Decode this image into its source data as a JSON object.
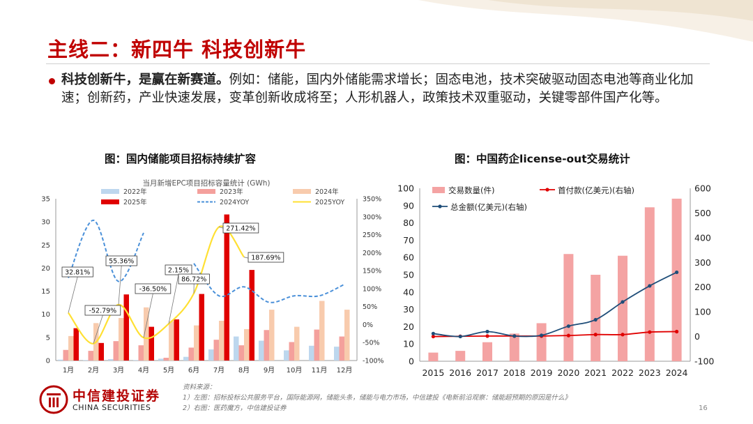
{
  "slide": {
    "title": "主线二：新四牛  科技创新牛",
    "bullet_lead": "科技创新牛，是赢在新赛道。",
    "bullet_text": "例如：储能，国内外储能需求增长；固态电池，技术突破驱动固态电池等商业化加速；创新药，产业快速发展，变革创新收成将至；人形机器人，政策技术双重驱动，关键零部件国产化等。",
    "page_number": "16"
  },
  "footer": {
    "logo_cn": "中信建投证券",
    "logo_en": "CHINA SECURITIES",
    "source_title": "资料来源：",
    "source_1": "1）左图：招标投标公共服务平台，国际能源网，储能头条，储能与电力市场，中信建投《电新前沿观察：储能超预期的原因是什么》",
    "source_2": "2）右图：医药魔方，中信建投证券"
  },
  "colors": {
    "brand_red": "#c00000",
    "bar_2022": "#bdd7ee",
    "bar_2023": "#f4a09c",
    "bar_2024": "#f8cbad",
    "bar_2025": "#e00000",
    "yoy_2024": "#4a90d9",
    "yoy_2025": "#ffe033",
    "deals_bar": "#f4a3a3",
    "upfront_line": "#e00000",
    "total_line": "#1f4e79"
  },
  "chart_data": [
    {
      "type": "bar",
      "title": "图：国内储能项目招标持续扩容",
      "subtitle": "当月新增EPC项目招标容量统计 (GWh)",
      "categories": [
        "1月",
        "2月",
        "3月",
        "4月",
        "5月",
        "6月",
        "7月",
        "8月",
        "9月",
        "10月",
        "11月",
        "12月"
      ],
      "ylim": [
        0,
        35
      ],
      "yticks": [
        0,
        5,
        10,
        15,
        20,
        25,
        30,
        35
      ],
      "y2lim": [
        -100,
        350
      ],
      "y2ticks": [
        "-100%",
        "-50%",
        "0%",
        "50%",
        "100%",
        "150%",
        "200%",
        "250%",
        "300%",
        "350%"
      ],
      "y2tick_values": [
        -100,
        -50,
        0,
        50,
        100,
        150,
        200,
        250,
        300,
        350
      ],
      "series": [
        {
          "name": "2022年",
          "values": [
            0.2,
            0.1,
            0.3,
            0.1,
            0.4,
            0.8,
            2.4,
            5.2,
            4.3,
            2.2,
            3.2,
            3.0
          ]
        },
        {
          "name": "2023年",
          "values": [
            2.3,
            2.1,
            4.2,
            3.3,
            0.6,
            2.8,
            4.5,
            3.3,
            6.6,
            4.0,
            6.7,
            5.2
          ]
        },
        {
          "name": "2024年",
          "values": [
            5.3,
            8.1,
            9.2,
            11.5,
            8.5,
            7.6,
            8.6,
            6.8,
            11.0,
            7.3,
            12.9,
            11.0
          ]
        },
        {
          "name": "2025年",
          "values": [
            7.0,
            3.8,
            14.3,
            7.3,
            8.9,
            14.4,
            31.6,
            19.6,
            null,
            null,
            null,
            null
          ]
        },
        {
          "name": "2024YOY",
          "type": "line",
          "style": "dashed",
          "values": [
            130,
            290,
            120,
            255,
            null,
            170,
            80,
            105,
            62,
            80,
            80,
            112
          ]
        },
        {
          "name": "2025YOY",
          "type": "line",
          "values": [
            32.81,
            -52.79,
            55.36,
            -36.5,
            2.15,
            86.72,
            271.42,
            187.69,
            null,
            null,
            null,
            null
          ]
        }
      ],
      "annotations": [
        "32.81%",
        "-52.79%",
        "55.36%",
        "-36.50%",
        "2.15%",
        "86.72%",
        "271.42%",
        "187.69%"
      ],
      "legend": "top"
    },
    {
      "type": "bar",
      "title": "图：中国药企license-out交易统计",
      "categories": [
        "2015",
        "2016",
        "2017",
        "2018",
        "2019",
        "2020",
        "2021",
        "2022",
        "2023",
        "2024"
      ],
      "ylim": [
        0,
        100
      ],
      "yticks": [
        0,
        10,
        20,
        30,
        40,
        50,
        60,
        70,
        80,
        90,
        100
      ],
      "y2lim": [
        -100,
        600
      ],
      "y2ticks": [
        -100,
        0,
        100,
        200,
        300,
        400,
        500,
        600
      ],
      "series": [
        {
          "name": "交易数量(件)",
          "type": "bar",
          "axis": "left",
          "values": [
            5,
            6,
            11,
            16,
            22,
            62,
            50,
            61,
            89,
            94
          ]
        },
        {
          "name": "首付款(亿美元)(右轴)",
          "type": "line",
          "axis": "right",
          "values": [
            0,
            1,
            2,
            2,
            2,
            4,
            8,
            8,
            18,
            20
          ]
        },
        {
          "name": "总金额(亿美元)(右轴)",
          "type": "line",
          "axis": "right",
          "values": [
            12,
            0,
            20,
            2,
            5,
            42,
            68,
            140,
            205,
            260
          ]
        }
      ],
      "legend": "top-left"
    }
  ]
}
